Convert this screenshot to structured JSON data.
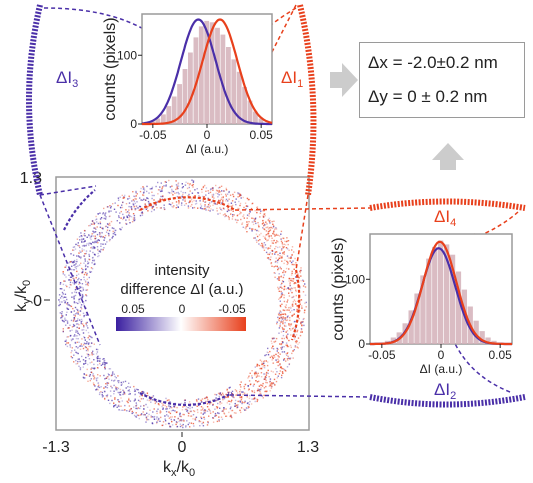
{
  "colors": {
    "blue": "#4a2fa8",
    "red": "#e8401c",
    "bar": "#d4b0b8",
    "arrow_gray": "#cccccc",
    "frame_gray": "#9a9a9a"
  },
  "ring_map": {
    "y_axis_label": "k",
    "y_axis_sub": "y",
    "y_axis_den": "/k",
    "y_axis_den_sub": "0",
    "x_axis_label": "k",
    "x_axis_sub": "x",
    "x_axis_den": "/k",
    "x_axis_den_sub": "0",
    "x_ticks": [
      "-1.3",
      "0",
      "1.3"
    ],
    "y_ticks": [
      "1.3",
      "0"
    ],
    "colorbar_title_1": "intensity",
    "colorbar_title_2": "difference ΔI (a.u.)",
    "colorbar_ticks": [
      "0.05",
      "0",
      "-0.05"
    ]
  },
  "segments": {
    "d1": {
      "main": "ΔI",
      "sub": "1"
    },
    "d2": {
      "main": "ΔI",
      "sub": "2"
    },
    "d3": {
      "main": "ΔI",
      "sub": "3"
    },
    "d4": {
      "main": "ΔI",
      "sub": "4"
    }
  },
  "result": {
    "dx": "Δx = -2.0±0.2 nm",
    "dy": "Δy =  0  ± 0.2 nm"
  },
  "chart_data": [
    {
      "type": "bar",
      "id": "histogram-top",
      "xlabel": "ΔI (a.u.)",
      "ylabel": "counts (pixels)",
      "xlim": [
        -0.06,
        0.06
      ],
      "ylim": [
        0,
        160
      ],
      "x_ticks": [
        "-0.05",
        "0",
        "0.05"
      ],
      "y_ticks": [
        "0",
        "100"
      ],
      "bins_x": [
        -0.05,
        -0.045,
        -0.04,
        -0.035,
        -0.03,
        -0.025,
        -0.02,
        -0.015,
        -0.01,
        -0.005,
        0,
        0.005,
        0.01,
        0.015,
        0.02,
        0.025,
        0.03,
        0.035,
        0.04,
        0.045,
        0.05
      ],
      "bins_y": [
        4,
        8,
        14,
        26,
        40,
        58,
        80,
        104,
        126,
        142,
        150,
        148,
        140,
        130,
        112,
        94,
        76,
        54,
        34,
        18,
        8
      ],
      "series": [
        {
          "name": "ΔI3",
          "color": "#4a2fa8",
          "mean": -0.008,
          "sigma": 0.016,
          "peak": 152
        },
        {
          "name": "ΔI1",
          "color": "#e8401c",
          "mean": 0.012,
          "sigma": 0.016,
          "peak": 152
        }
      ]
    },
    {
      "type": "bar",
      "id": "histogram-bottom",
      "xlabel": "ΔI (a.u.)",
      "ylabel": "counts (pixels)",
      "xlim": [
        -0.06,
        0.06
      ],
      "ylim": [
        0,
        170
      ],
      "x_ticks": [
        "-0.05",
        "0",
        "0.05"
      ],
      "y_ticks": [
        "0",
        "100"
      ],
      "bins_x": [
        -0.05,
        -0.045,
        -0.04,
        -0.035,
        -0.03,
        -0.025,
        -0.02,
        -0.015,
        -0.01,
        -0.005,
        0,
        0.005,
        0.01,
        0.015,
        0.02,
        0.025,
        0.03,
        0.035,
        0.04,
        0.045,
        0.05
      ],
      "bins_y": [
        2,
        5,
        10,
        18,
        32,
        52,
        78,
        106,
        132,
        150,
        160,
        154,
        138,
        112,
        84,
        58,
        36,
        20,
        10,
        5,
        2
      ],
      "series": [
        {
          "name": "ΔI2",
          "color": "#4a2fa8",
          "mean": -0.002,
          "sigma": 0.014,
          "peak": 148
        },
        {
          "name": "ΔI4",
          "color": "#e8401c",
          "mean": -0.001,
          "sigma": 0.014,
          "peak": 158
        }
      ]
    }
  ]
}
